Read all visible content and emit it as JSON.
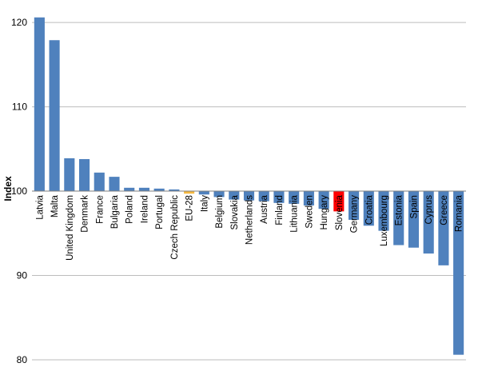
{
  "chart_data": {
    "type": "bar",
    "title": "",
    "xlabel": "",
    "ylabel": "Index",
    "ylim": [
      80,
      122
    ],
    "baseline": 100,
    "yticks": [
      80,
      90,
      100,
      110,
      120
    ],
    "grid": true,
    "legend": "none",
    "categories": [
      "Latvia",
      "Malta",
      "United Kingdom",
      "Denmark",
      "France",
      "Bulgaria",
      "Poland",
      "Ireland",
      "Portugal",
      "Czech Republic",
      "EU-28",
      "Italy",
      "Belgium",
      "Slovakia",
      "Netherlands",
      "Austria",
      "Finland",
      "Lithuania",
      "Sweden",
      "Hungary",
      "Slovenia",
      "Germany",
      "Croatia",
      "Luxembourg",
      "Estonia",
      "Spain",
      "Cyprus",
      "Greece",
      "Romania"
    ],
    "values": [
      120.6,
      117.9,
      103.9,
      103.8,
      102.2,
      101.7,
      100.4,
      100.4,
      100.3,
      100.2,
      99.7,
      99.6,
      99.3,
      99.0,
      98.9,
      98.8,
      98.6,
      98.5,
      98.3,
      97.9,
      97.6,
      96.6,
      95.9,
      95.3,
      93.6,
      93.3,
      92.6,
      91.2,
      80.6
    ],
    "colors": {
      "default": "#4f81bd",
      "EU-28": "#f5b841",
      "Slovenia": "#ff0000"
    }
  }
}
